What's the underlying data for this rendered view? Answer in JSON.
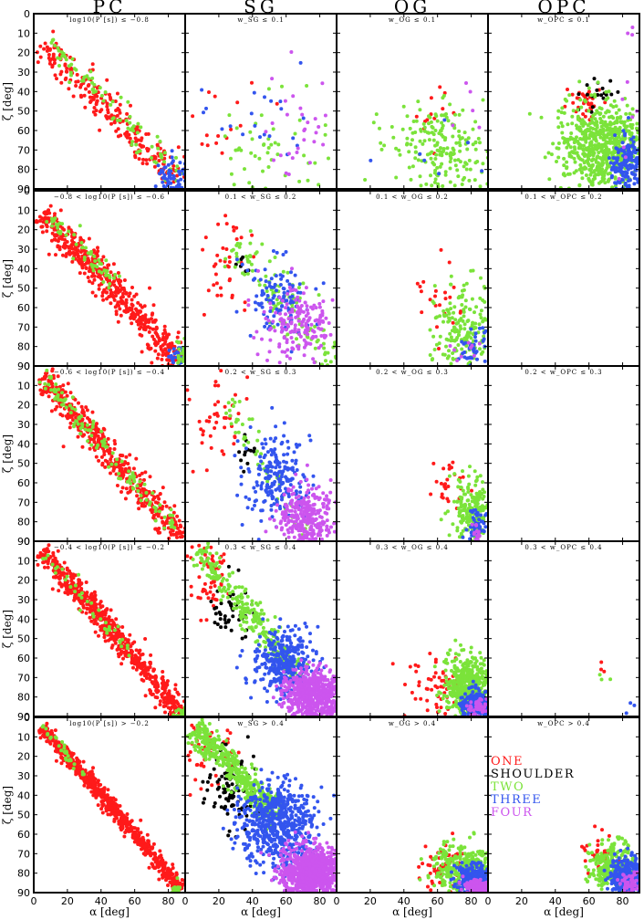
{
  "column_titles": [
    "PC",
    "SG",
    "OG",
    "OPC"
  ],
  "row_labels": [
    [
      "log10(P [s]) ≤ −0.8",
      "w_SG ≤ 0.1",
      "w_OG ≤ 0.1",
      "w_OPC ≤ 0.1"
    ],
    [
      "−0.8 < log10(P [s]) ≤ −0.6",
      "0.1 < w_SG ≤ 0.2",
      "0.1 < w_OG ≤ 0.2",
      "0.1 < w_OPC ≤ 0.2"
    ],
    [
      "−0.6 < log10(P [s]) ≤ −0.4",
      "0.2 < w_SG ≤ 0.3",
      "0.2 < w_OG ≤ 0.3",
      "0.2 < w_OPC ≤ 0.3"
    ],
    [
      "−0.4 < log10(P [s]) ≤ −0.2",
      "0.3 < w_SG ≤ 0.4",
      "0.3 < w_OG ≤ 0.4",
      "0.3 < w_OPC ≤ 0.4"
    ],
    [
      "log10(P [s]) > −0.2",
      "w_SG > 0.4",
      "w_OG > 0.4",
      "w_OPC > 0.4"
    ]
  ],
  "chart_data": {
    "type": "scatter",
    "grid": "5 rows x 4 columns of panels, shared axes",
    "xlabel": "α [deg]",
    "ylabel": "ζ [deg]",
    "xlim": [
      0,
      90
    ],
    "ylim": [
      0,
      90
    ],
    "y_inverted": true,
    "x_ticks": [
      0,
      20,
      40,
      60,
      80
    ],
    "y_ticks": [
      0,
      10,
      20,
      30,
      40,
      50,
      60,
      70,
      80,
      90
    ],
    "grid_lines": false,
    "legend_location": "right side of OG panel, bottom row",
    "series": [
      {
        "name": "ONE",
        "color": "#ff1a1a"
      },
      {
        "name": "SHOULDER",
        "color": "#000000"
      },
      {
        "name": "TWO",
        "color": "#7be33a"
      },
      {
        "name": "THREE",
        "color": "#3355ee"
      },
      {
        "name": "FOUR",
        "color": "#cc55ee"
      }
    ],
    "panels": [
      {
        "row": 0,
        "col": 0,
        "clusters": [
          {
            "series": "ONE",
            "n": 260,
            "type": "band",
            "a0": [
              5,
              15
            ],
            "a1": [
              88,
              88
            ],
            "width": 9
          },
          {
            "series": "TWO",
            "n": 90,
            "type": "band",
            "a0": [
              8,
              12
            ],
            "a1": [
              86,
              85
            ],
            "width": 6
          },
          {
            "series": "THREE",
            "n": 60,
            "type": "blob",
            "cx": 82,
            "cy": 84,
            "sx": 4,
            "sy": 5
          }
        ]
      },
      {
        "row": 0,
        "col": 1,
        "clusters": [
          {
            "series": "ONE",
            "n": 15,
            "type": "blob",
            "cx": 22,
            "cy": 55,
            "sx": 12,
            "sy": 12
          },
          {
            "series": "TWO",
            "n": 55,
            "type": "blob",
            "cx": 50,
            "cy": 72,
            "sx": 20,
            "sy": 14
          },
          {
            "series": "THREE",
            "n": 22,
            "type": "blob",
            "cx": 52,
            "cy": 50,
            "sx": 16,
            "sy": 18
          },
          {
            "series": "FOUR",
            "n": 35,
            "type": "blob",
            "cx": 68,
            "cy": 58,
            "sx": 14,
            "sy": 18
          }
        ]
      },
      {
        "row": 0,
        "col": 2,
        "clusters": [
          {
            "series": "ONE",
            "n": 12,
            "type": "blob",
            "cx": 55,
            "cy": 46,
            "sx": 10,
            "sy": 10
          },
          {
            "series": "TWO",
            "n": 220,
            "type": "blob",
            "cx": 62,
            "cy": 70,
            "sx": 15,
            "sy": 12
          },
          {
            "series": "THREE",
            "n": 10,
            "type": "blob",
            "cx": 60,
            "cy": 70,
            "sx": 22,
            "sy": 12
          },
          {
            "series": "FOUR",
            "n": 5,
            "type": "blob",
            "cx": 82,
            "cy": 35,
            "sx": 5,
            "sy": 14
          }
        ]
      },
      {
        "row": 0,
        "col": 3,
        "clusters": [
          {
            "series": "ONE",
            "n": 35,
            "type": "blob",
            "cx": 57,
            "cy": 46,
            "sx": 6,
            "sy": 5
          },
          {
            "series": "SHOULDER",
            "n": 20,
            "type": "blob",
            "cx": 66,
            "cy": 42,
            "sx": 5,
            "sy": 4
          },
          {
            "series": "TWO",
            "n": 650,
            "type": "blob",
            "cx": 68,
            "cy": 68,
            "sx": 13,
            "sy": 11
          },
          {
            "series": "THREE",
            "n": 180,
            "type": "blob",
            "cx": 83,
            "cy": 78,
            "sx": 5,
            "sy": 8
          },
          {
            "series": "FOUR",
            "n": 12,
            "type": "blob",
            "cx": 84,
            "cy": 40,
            "sx": 5,
            "sy": 25
          }
        ]
      },
      {
        "row": 1,
        "col": 0,
        "clusters": [
          {
            "series": "ONE",
            "n": 520,
            "type": "band",
            "a0": [
              5,
              12
            ],
            "a1": [
              88,
              88
            ],
            "width": 8
          },
          {
            "series": "TWO",
            "n": 60,
            "type": "band",
            "a0": [
              10,
              13
            ],
            "a1": [
              48,
              48
            ],
            "width": 5
          },
          {
            "series": "THREE",
            "n": 25,
            "type": "blob",
            "cx": 85,
            "cy": 84,
            "sx": 3,
            "sy": 4
          },
          {
            "series": "TWO",
            "n": 25,
            "type": "blob",
            "cx": 88,
            "cy": 85,
            "sx": 2,
            "sy": 5
          }
        ]
      },
      {
        "row": 1,
        "col": 1,
        "clusters": [
          {
            "series": "ONE",
            "n": 40,
            "type": "blob",
            "cx": 22,
            "cy": 38,
            "sx": 10,
            "sy": 12
          },
          {
            "series": "SHOULDER",
            "n": 6,
            "type": "blob",
            "cx": 32,
            "cy": 42,
            "sx": 5,
            "sy": 6
          },
          {
            "series": "TWO",
            "n": 120,
            "type": "band",
            "a0": [
              30,
              28
            ],
            "a1": [
              88,
              88
            ],
            "width": 12
          },
          {
            "series": "THREE",
            "n": 110,
            "type": "blob",
            "cx": 55,
            "cy": 55,
            "sx": 10,
            "sy": 10
          },
          {
            "series": "FOUR",
            "n": 180,
            "type": "blob",
            "cx": 68,
            "cy": 68,
            "sx": 11,
            "sy": 10
          }
        ]
      },
      {
        "row": 1,
        "col": 2,
        "clusters": [
          {
            "series": "ONE",
            "n": 22,
            "type": "blob",
            "cx": 60,
            "cy": 55,
            "sx": 7,
            "sy": 10
          },
          {
            "series": "TWO",
            "n": 200,
            "type": "blob",
            "cx": 76,
            "cy": 70,
            "sx": 9,
            "sy": 12
          },
          {
            "series": "THREE",
            "n": 40,
            "type": "blob",
            "cx": 82,
            "cy": 82,
            "sx": 6,
            "sy": 5
          },
          {
            "series": "FOUR",
            "n": 10,
            "type": "blob",
            "cx": 78,
            "cy": 84,
            "sx": 6,
            "sy": 4
          }
        ]
      },
      {
        "row": 1,
        "col": 3,
        "clusters": []
      },
      {
        "row": 2,
        "col": 0,
        "clusters": [
          {
            "series": "ONE",
            "n": 480,
            "type": "band",
            "a0": [
              5,
              5
            ],
            "a1": [
              88,
              88
            ],
            "width": 7
          },
          {
            "series": "TWO",
            "n": 120,
            "type": "band",
            "a0": [
              5,
              5
            ],
            "a1": [
              85,
              85
            ],
            "width": 5
          }
        ]
      },
      {
        "row": 2,
        "col": 1,
        "clusters": [
          {
            "series": "ONE",
            "n": 45,
            "type": "blob",
            "cx": 18,
            "cy": 20,
            "sx": 9,
            "sy": 12
          },
          {
            "series": "SHOULDER",
            "n": 12,
            "type": "blob",
            "cx": 34,
            "cy": 45,
            "sx": 4,
            "sy": 5
          },
          {
            "series": "TWO",
            "n": 60,
            "type": "band",
            "a0": [
              25,
              18
            ],
            "a1": [
              72,
              88
            ],
            "width": 7
          },
          {
            "series": "THREE",
            "n": 200,
            "type": "blob",
            "cx": 55,
            "cy": 58,
            "sx": 10,
            "sy": 11
          },
          {
            "series": "FOUR",
            "n": 320,
            "type": "blob",
            "cx": 72,
            "cy": 78,
            "sx": 8,
            "sy": 8
          }
        ]
      },
      {
        "row": 2,
        "col": 2,
        "clusters": [
          {
            "series": "ONE",
            "n": 28,
            "type": "blob",
            "cx": 66,
            "cy": 62,
            "sx": 4,
            "sy": 6
          },
          {
            "series": "TWO",
            "n": 180,
            "type": "blob",
            "cx": 80,
            "cy": 72,
            "sx": 6,
            "sy": 9
          },
          {
            "series": "THREE",
            "n": 50,
            "type": "blob",
            "cx": 84,
            "cy": 82,
            "sx": 4,
            "sy": 4
          },
          {
            "series": "FOUR",
            "n": 15,
            "type": "blob",
            "cx": 84,
            "cy": 86,
            "sx": 3,
            "sy": 3
          }
        ]
      },
      {
        "row": 2,
        "col": 3,
        "clusters": []
      },
      {
        "row": 3,
        "col": 0,
        "clusters": [
          {
            "series": "ONE",
            "n": 620,
            "type": "band",
            "a0": [
              5,
              5
            ],
            "a1": [
              88,
              88
            ],
            "width": 6
          },
          {
            "series": "TWO",
            "n": 40,
            "type": "band",
            "a0": [
              5,
              5
            ],
            "a1": [
              60,
              60
            ],
            "width": 4
          },
          {
            "series": "TWO",
            "n": 20,
            "type": "blob",
            "cx": 87,
            "cy": 88,
            "sx": 2,
            "sy": 2
          }
        ]
      },
      {
        "row": 3,
        "col": 1,
        "clusters": [
          {
            "series": "ONE",
            "n": 55,
            "type": "blob",
            "cx": 14,
            "cy": 18,
            "sx": 7,
            "sy": 10
          },
          {
            "series": "SHOULDER",
            "n": 45,
            "type": "blob",
            "cx": 28,
            "cy": 35,
            "sx": 6,
            "sy": 8
          },
          {
            "series": "TWO",
            "n": 280,
            "type": "band",
            "a0": [
              8,
              5
            ],
            "a1": [
              68,
              70
            ],
            "width": 7
          },
          {
            "series": "THREE",
            "n": 350,
            "type": "blob",
            "cx": 58,
            "cy": 62,
            "sx": 9,
            "sy": 8
          },
          {
            "series": "FOUR",
            "n": 650,
            "type": "blob",
            "cx": 76,
            "cy": 79,
            "sx": 8,
            "sy": 7
          }
        ]
      },
      {
        "row": 3,
        "col": 2,
        "clusters": [
          {
            "series": "ONE",
            "n": 60,
            "type": "blob",
            "cx": 60,
            "cy": 75,
            "sx": 8,
            "sy": 8
          },
          {
            "series": "TWO",
            "n": 450,
            "type": "blob",
            "cx": 78,
            "cy": 75,
            "sx": 7,
            "sy": 8
          },
          {
            "series": "THREE",
            "n": 260,
            "type": "blob",
            "cx": 82,
            "cy": 84,
            "sx": 4,
            "sy": 4
          },
          {
            "series": "FOUR",
            "n": 50,
            "type": "blob",
            "cx": 84,
            "cy": 86,
            "sx": 3,
            "sy": 3
          }
        ]
      },
      {
        "row": 3,
        "col": 3,
        "clusters": [
          {
            "series": "ONE",
            "n": 3,
            "type": "blob",
            "cx": 68,
            "cy": 66,
            "sx": 2,
            "sy": 2
          },
          {
            "series": "TWO",
            "n": 3,
            "type": "blob",
            "cx": 70,
            "cy": 70,
            "sx": 3,
            "sy": 3
          },
          {
            "series": "THREE",
            "n": 3,
            "type": "blob",
            "cx": 86,
            "cy": 86,
            "sx": 2,
            "sy": 3
          }
        ]
      },
      {
        "row": 4,
        "col": 0,
        "clusters": [
          {
            "series": "ONE",
            "n": 720,
            "type": "band",
            "a0": [
              5,
              5
            ],
            "a1": [
              88,
              88
            ],
            "width": 4
          },
          {
            "series": "TWO",
            "n": 30,
            "type": "band",
            "a0": [
              5,
              5
            ],
            "a1": [
              30,
              30
            ],
            "width": 3
          },
          {
            "series": "TWO",
            "n": 20,
            "type": "blob",
            "cx": 86,
            "cy": 88,
            "sx": 2,
            "sy": 2
          }
        ]
      },
      {
        "row": 4,
        "col": 1,
        "clusters": [
          {
            "series": "ONE",
            "n": 60,
            "type": "blob",
            "cx": 14,
            "cy": 16,
            "sx": 7,
            "sy": 8
          },
          {
            "series": "SHOULDER",
            "n": 90,
            "type": "blob",
            "cx": 27,
            "cy": 38,
            "sx": 7,
            "sy": 10
          },
          {
            "series": "TWO",
            "n": 480,
            "type": "band",
            "a0": [
              5,
              5
            ],
            "a1": [
              55,
              52
            ],
            "width": 7
          },
          {
            "series": "THREE",
            "n": 620,
            "type": "blob",
            "cx": 55,
            "cy": 55,
            "sx": 11,
            "sy": 11
          },
          {
            "series": "FOUR",
            "n": 900,
            "type": "blob",
            "cx": 75,
            "cy": 80,
            "sx": 9,
            "sy": 7
          }
        ]
      },
      {
        "row": 4,
        "col": 2,
        "clusters": [
          {
            "series": "ONE",
            "n": 70,
            "type": "blob",
            "cx": 68,
            "cy": 78,
            "sx": 10,
            "sy": 6
          },
          {
            "series": "TWO",
            "n": 350,
            "type": "blob",
            "cx": 76,
            "cy": 78,
            "sx": 9,
            "sy": 6
          },
          {
            "series": "THREE",
            "n": 380,
            "type": "blob",
            "cx": 82,
            "cy": 84,
            "sx": 5,
            "sy": 4
          },
          {
            "series": "FOUR",
            "n": 150,
            "type": "blob",
            "cx": 84,
            "cy": 87,
            "sx": 4,
            "sy": 2
          }
        ]
      },
      {
        "row": 4,
        "col": 3,
        "clusters": [
          {
            "series": "ONE",
            "n": 40,
            "type": "blob",
            "cx": 66,
            "cy": 70,
            "sx": 6,
            "sy": 5
          },
          {
            "series": "TWO",
            "n": 260,
            "type": "blob",
            "cx": 74,
            "cy": 76,
            "sx": 7,
            "sy": 6
          },
          {
            "series": "THREE",
            "n": 280,
            "type": "blob",
            "cx": 82,
            "cy": 82,
            "sx": 5,
            "sy": 5
          },
          {
            "series": "FOUR",
            "n": 50,
            "type": "blob",
            "cx": 84,
            "cy": 86,
            "sx": 3,
            "sy": 3
          }
        ]
      }
    ]
  }
}
